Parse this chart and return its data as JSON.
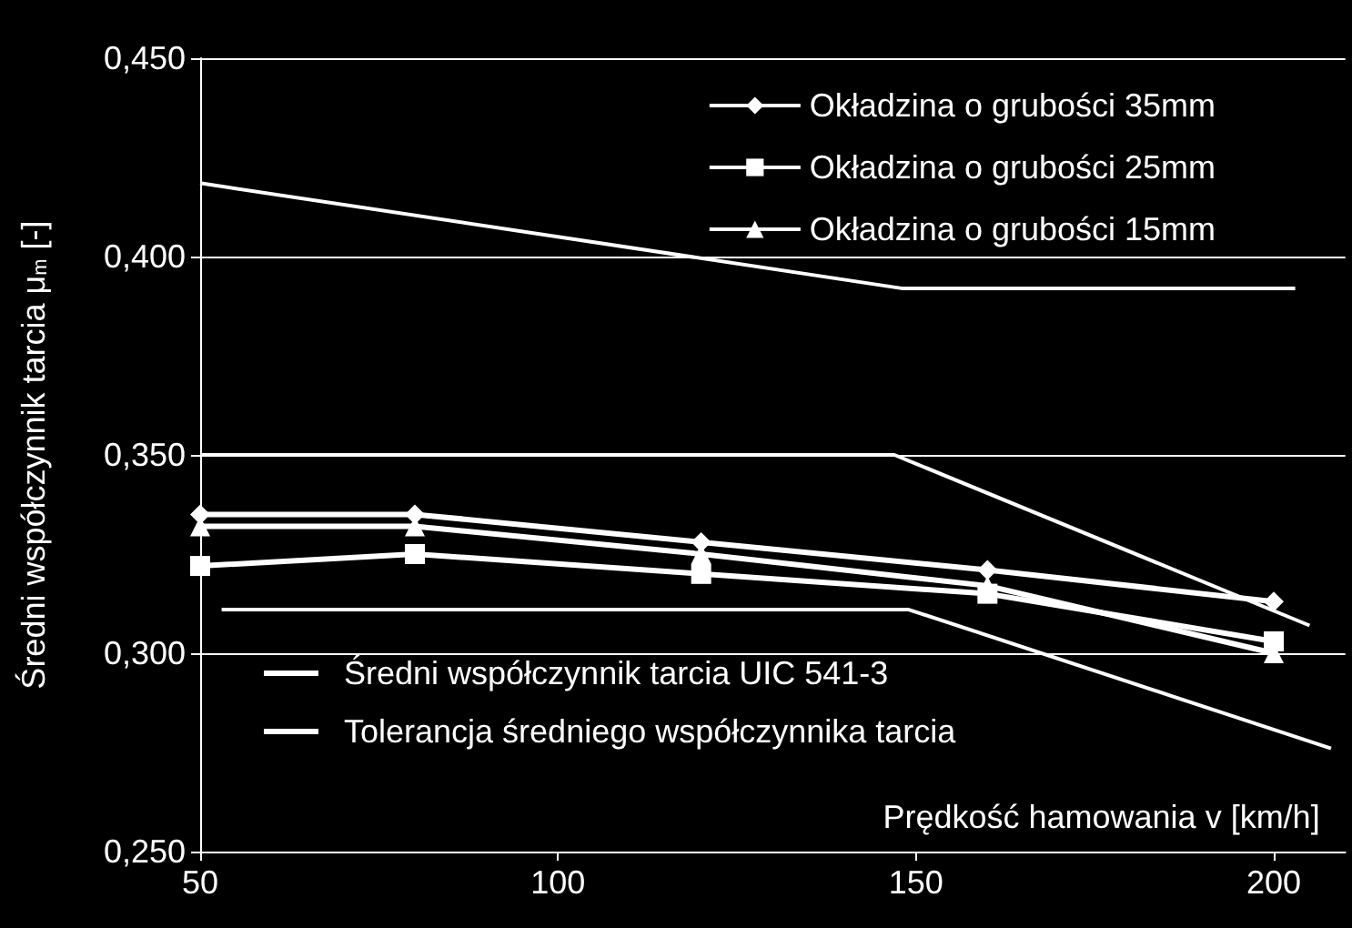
{
  "chart_data": {
    "type": "line",
    "xlabel": "Prędkość hamowania v [km/h]",
    "ylabel": "Średni współczynnik tarcia μ$_{m}$ [-]",
    "xlim": [
      50,
      210
    ],
    "xticks": [
      50,
      100,
      150,
      200
    ],
    "ylim": [
      0.25,
      0.45
    ],
    "yticks": [
      {
        "value": 0.25,
        "label": "0,250"
      },
      {
        "value": 0.3,
        "label": "0,300"
      },
      {
        "value": 0.35,
        "label": "0,350"
      },
      {
        "value": 0.4,
        "label": "0,400"
      },
      {
        "value": 0.45,
        "label": "0,450"
      }
    ],
    "grid": "y",
    "legend": "top right",
    "series": [
      {
        "name": "Okładzina o grubości 35mm",
        "color": "#ffffff",
        "marker": "diamond",
        "x": [
          50,
          80,
          120,
          160,
          200
        ],
        "values": [
          0.335,
          0.335,
          0.328,
          0.321,
          0.313
        ]
      },
      {
        "name": "Okładzina o grubości 25mm",
        "color": "#ffffff",
        "marker": "square",
        "x": [
          50,
          80,
          120,
          160,
          200
        ],
        "values": [
          0.322,
          0.325,
          0.32,
          0.315,
          0.303
        ]
      },
      {
        "name": "Okładzina o grubości 15mm",
        "color": "#ffffff",
        "marker": "triangle",
        "x": [
          50,
          80,
          120,
          160,
          200
        ],
        "values": [
          0.332,
          0.332,
          0.325,
          0.317,
          0.3
        ]
      },
      {
        "name": "Średni współczynnik tarcia UIC 541-3",
        "color": "#ffffff",
        "marker": "none",
        "x": [
          50,
          147,
          205
        ],
        "values": [
          0.35,
          0.35,
          0.307
        ]
      },
      {
        "name": "Tolerancja średniego współczynnika tarcia",
        "color": "#ffffff",
        "marker": "none",
        "x": [
          50,
          148,
          203
        ],
        "values": [
          0.4185,
          0.392,
          0.392
        ]
      },
      {
        "color": "#ffffff",
        "marker": "none",
        "x": [
          53,
          149,
          208
        ],
        "values": [
          0.311,
          0.311,
          0.276
        ]
      }
    ]
  }
}
